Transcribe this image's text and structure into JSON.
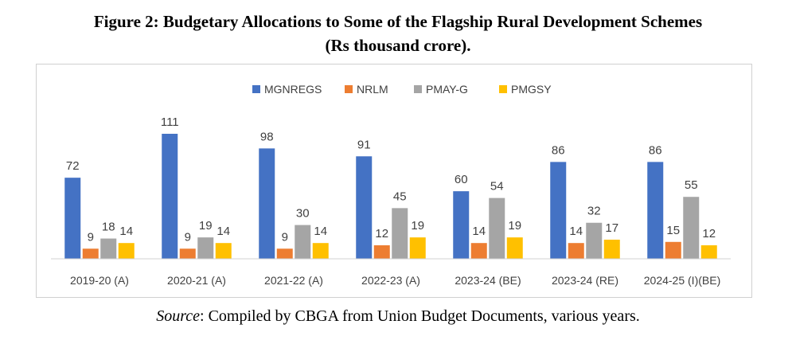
{
  "header": {
    "title_line1": "Figure 2: Budgetary Allocations to Some of the Flagship Rural Development Schemes",
    "title_line2": "(Rs thousand crore)."
  },
  "footer": {
    "source_label": "Source",
    "source_text": ": Compiled by CBGA from Union Budget Documents, various years."
  },
  "chart_data": {
    "type": "bar",
    "title": "Figure 2: Budgetary Allocations to Some of the Flagship Rural Development Schemes (Rs thousand crore).",
    "categories": [
      "2019-20 (A)",
      "2020-21 (A)",
      "2021-22 (A)",
      "2022-23 (A)",
      "2023-24 (BE)",
      "2023-24 (RE)",
      "2024-25 (I)(BE)"
    ],
    "series": [
      {
        "name": "MGNREGS",
        "color": "#4472c4",
        "values": [
          72,
          111,
          98,
          91,
          60,
          86,
          86
        ]
      },
      {
        "name": "NRLM",
        "color": "#ed7d31",
        "values": [
          9,
          9,
          9,
          12,
          14,
          14,
          15
        ]
      },
      {
        "name": "PMAY-G",
        "color": "#a5a5a5",
        "values": [
          18,
          19,
          30,
          45,
          54,
          32,
          55
        ]
      },
      {
        "name": "PMGSY",
        "color": "#ffc000",
        "values": [
          14,
          14,
          14,
          19,
          19,
          17,
          12
        ]
      }
    ],
    "ylim": [
      0,
      120
    ],
    "data_labels": true,
    "grid": false,
    "legend_position": "top"
  }
}
